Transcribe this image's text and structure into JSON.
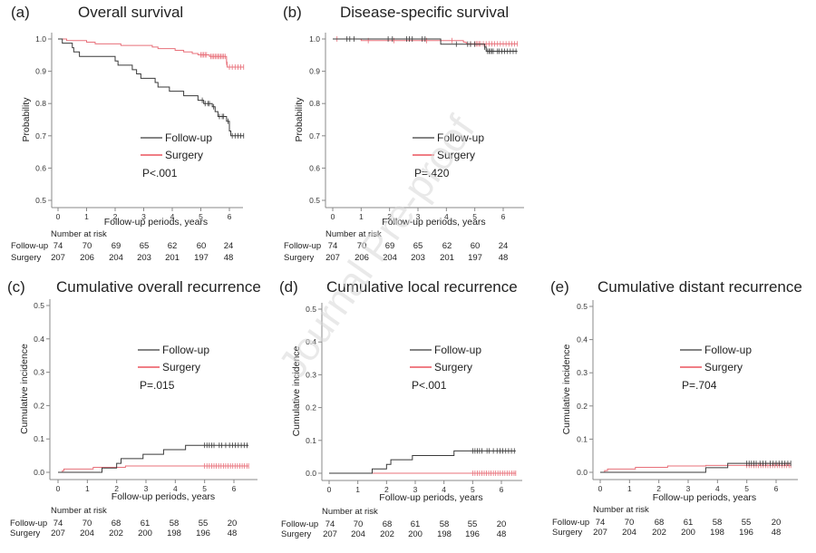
{
  "watermark": "Journal Pre-proof",
  "colors": {
    "follow_up": "#3a3a3a",
    "surgery": "#e8707a",
    "legend_surgery": "#e8323c"
  },
  "chart_data": [
    {
      "id": "a",
      "type": "line",
      "letter": "(a)",
      "title": "Overall survival",
      "xlabel": "Follow-up periods, years",
      "ylabel": "Probability",
      "xlim": [
        0,
        6.5
      ],
      "ylim": [
        0.5,
        1.0
      ],
      "xticks": [
        0,
        1,
        2,
        3,
        4,
        5,
        6
      ],
      "yticks": [
        "0.5",
        "0.6",
        "0.7",
        "0.8",
        "0.9",
        "1.0"
      ],
      "ytick_values": [
        0.5,
        0.6,
        0.7,
        0.8,
        0.9,
        1.0
      ],
      "legend": [
        "Follow-up",
        "Surgery"
      ],
      "p_value": "P<.001",
      "series": [
        {
          "name": "Follow-up",
          "step": [
            [
              0,
              1.0
            ],
            [
              0.15,
              0.987
            ],
            [
              0.5,
              0.973
            ],
            [
              0.55,
              0.96
            ],
            [
              0.75,
              0.946
            ],
            [
              2.0,
              0.932
            ],
            [
              2.1,
              0.919
            ],
            [
              2.6,
              0.905
            ],
            [
              2.75,
              0.892
            ],
            [
              2.9,
              0.878
            ],
            [
              3.4,
              0.865
            ],
            [
              3.5,
              0.851
            ],
            [
              3.9,
              0.838
            ],
            [
              4.4,
              0.824
            ],
            [
              4.9,
              0.81
            ],
            [
              5.1,
              0.8
            ],
            [
              5.4,
              0.79
            ],
            [
              5.5,
              0.775
            ],
            [
              5.6,
              0.76
            ],
            [
              5.9,
              0.745
            ],
            [
              6.0,
              0.715
            ],
            [
              6.05,
              0.7
            ],
            [
              6.5,
              0.7
            ]
          ],
          "censor": [
            5.05,
            5.15,
            5.25,
            5.3,
            5.45,
            5.65,
            5.75,
            5.8,
            5.95,
            6.1,
            6.2,
            6.3,
            6.4,
            6.5
          ]
        },
        {
          "name": "Surgery",
          "step": [
            [
              0,
              1.0
            ],
            [
              0.3,
              0.995
            ],
            [
              1.0,
              0.99
            ],
            [
              1.3,
              0.985
            ],
            [
              2.2,
              0.98
            ],
            [
              3.3,
              0.975
            ],
            [
              3.5,
              0.97
            ],
            [
              4.1,
              0.965
            ],
            [
              4.4,
              0.96
            ],
            [
              4.7,
              0.955
            ],
            [
              4.9,
              0.951
            ],
            [
              5.3,
              0.946
            ],
            [
              5.9,
              0.928
            ],
            [
              5.92,
              0.913
            ],
            [
              6.5,
              0.913
            ]
          ],
          "censor": [
            5.0,
            5.05,
            5.1,
            5.15,
            5.2,
            5.35,
            5.4,
            5.45,
            5.5,
            5.55,
            5.6,
            5.65,
            5.7,
            5.75,
            5.8,
            5.85,
            5.9,
            6.0,
            6.1,
            6.2,
            6.3,
            6.4,
            6.5
          ]
        }
      ],
      "risk_table": {
        "header": "Number at risk",
        "rows": [
          {
            "label": "Follow-up",
            "values": [
              "74",
              "70",
              "69",
              "65",
              "62",
              "60",
              "24"
            ]
          },
          {
            "label": "Surgery",
            "values": [
              "207",
              "206",
              "204",
              "203",
              "201",
              "197",
              "48"
            ]
          }
        ]
      }
    },
    {
      "id": "b",
      "type": "line",
      "letter": "(b)",
      "title": "Disease-specific survival",
      "xlabel": "Follow-up periods, years",
      "ylabel": "Probability",
      "xlim": [
        0,
        6.5
      ],
      "ylim": [
        0.5,
        1.0
      ],
      "xticks": [
        0,
        1,
        2,
        3,
        4,
        5,
        6
      ],
      "yticks": [
        "0.5",
        "0.6",
        "0.7",
        "0.8",
        "0.9",
        "1.0"
      ],
      "ytick_values": [
        0.5,
        0.6,
        0.7,
        0.8,
        0.9,
        1.0
      ],
      "legend": [
        "Follow-up",
        "Surgery"
      ],
      "p_value": "P=.420",
      "series": [
        {
          "name": "Follow-up",
          "step": [
            [
              0,
              1.0
            ],
            [
              3.8,
              0.984
            ],
            [
              5.35,
              0.975
            ],
            [
              5.4,
              0.962
            ],
            [
              6.5,
              0.962
            ]
          ],
          "censor": [
            0.5,
            0.6,
            0.75,
            1.95,
            2.1,
            2.6,
            2.7,
            2.8,
            3.15,
            3.25,
            4.35,
            4.75,
            4.85,
            5.0,
            5.35,
            5.45,
            5.5,
            5.55,
            5.6,
            5.65,
            5.8,
            5.85,
            5.95,
            6.05,
            6.15,
            6.25,
            6.35,
            6.45
          ]
        },
        {
          "name": "Surgery",
          "step": [
            [
              0,
              1.0
            ],
            [
              1.0,
              0.995
            ],
            [
              4.6,
              0.99
            ],
            [
              4.7,
              0.985
            ],
            [
              6.5,
              0.985
            ]
          ],
          "censor": [
            0.15,
            1.25,
            2.15,
            3.3,
            4.2,
            4.85,
            5.0,
            5.05,
            5.1,
            5.15,
            5.2,
            5.3,
            5.4,
            5.5,
            5.6,
            5.7,
            5.8,
            5.9,
            6.0,
            6.1,
            6.2,
            6.3,
            6.4,
            6.5
          ]
        }
      ],
      "risk_table": {
        "header": "Number at risk",
        "rows": [
          {
            "label": "Follow-up",
            "values": [
              "74",
              "70",
              "69",
              "65",
              "62",
              "60",
              "24"
            ]
          },
          {
            "label": "Surgery",
            "values": [
              "207",
              "206",
              "204",
              "203",
              "201",
              "197",
              "48"
            ]
          }
        ]
      }
    },
    {
      "id": "c",
      "type": "line",
      "letter": "(c)",
      "title": "Cumulative overall recurrence",
      "xlabel": "Follow-up periods, years",
      "ylabel": "Cumulative incidence",
      "xlim": [
        0,
        6.5
      ],
      "ylim": [
        0.0,
        0.5
      ],
      "xticks": [
        0,
        1,
        2,
        3,
        4,
        5,
        6
      ],
      "yticks": [
        "0.0",
        "0.1",
        "0.2",
        "0.3",
        "0.4",
        "0.5"
      ],
      "ytick_values": [
        0.0,
        0.1,
        0.2,
        0.3,
        0.4,
        0.5
      ],
      "legend": [
        "Follow-up",
        "Surgery"
      ],
      "p_value": "P=.015",
      "series": [
        {
          "name": "Follow-up",
          "step": [
            [
              0,
              0.0
            ],
            [
              1.5,
              0.013
            ],
            [
              2.0,
              0.027
            ],
            [
              2.15,
              0.041
            ],
            [
              2.9,
              0.054
            ],
            [
              3.6,
              0.068
            ],
            [
              4.35,
              0.081
            ],
            [
              6.5,
              0.081
            ]
          ],
          "censor": [
            5.0,
            5.08,
            5.16,
            5.24,
            5.32,
            5.5,
            5.58,
            5.72,
            5.85,
            5.95,
            6.05,
            6.15,
            6.25,
            6.35,
            6.45
          ]
        },
        {
          "name": "Surgery",
          "step": [
            [
              0,
              0.0
            ],
            [
              0.15,
              0.005
            ],
            [
              0.2,
              0.01
            ],
            [
              1.2,
              0.015
            ],
            [
              2.3,
              0.019
            ],
            [
              6.5,
              0.019
            ]
          ],
          "censor": [
            5.0,
            5.08,
            5.16,
            5.24,
            5.32,
            5.4,
            5.48,
            5.56,
            5.64,
            5.72,
            5.8,
            5.88,
            5.96,
            6.04,
            6.12,
            6.2,
            6.28,
            6.36,
            6.44,
            6.5
          ]
        }
      ],
      "risk_table": {
        "header": "Number at risk",
        "rows": [
          {
            "label": "Follow-up",
            "values": [
              "74",
              "70",
              "68",
              "61",
              "58",
              "55",
              "20"
            ]
          },
          {
            "label": "Surgery",
            "values": [
              "207",
              "204",
              "202",
              "200",
              "198",
              "196",
              "48"
            ]
          }
        ]
      }
    },
    {
      "id": "d",
      "type": "line",
      "letter": "(d)",
      "title": "Cumulative local recurrence",
      "xlabel": "Follow-up periods, years",
      "ylabel": "Cumulative incidence",
      "xlim": [
        0,
        6.5
      ],
      "ylim": [
        0.0,
        0.5
      ],
      "xticks": [
        0,
        1,
        2,
        3,
        4,
        5,
        6
      ],
      "yticks": [
        "0.0",
        "0.1",
        "0.2",
        "0.3",
        "0.4",
        "0.5"
      ],
      "ytick_values": [
        0.0,
        0.1,
        0.2,
        0.3,
        0.4,
        0.5
      ],
      "legend": [
        "Follow-up",
        "Surgery"
      ],
      "p_value": "P<.001",
      "series": [
        {
          "name": "Follow-up",
          "step": [
            [
              0,
              0.0
            ],
            [
              1.5,
              0.013
            ],
            [
              2.0,
              0.027
            ],
            [
              2.15,
              0.041
            ],
            [
              2.9,
              0.054
            ],
            [
              4.35,
              0.068
            ],
            [
              6.5,
              0.068
            ]
          ],
          "censor": [
            5.0,
            5.08,
            5.16,
            5.24,
            5.32,
            5.5,
            5.58,
            5.72,
            5.85,
            5.95,
            6.05,
            6.15,
            6.25,
            6.35,
            6.45
          ]
        },
        {
          "name": "Surgery",
          "step": [
            [
              0,
              0.0
            ],
            [
              6.5,
              0.0
            ]
          ],
          "censor": [
            5.0,
            5.08,
            5.16,
            5.24,
            5.32,
            5.4,
            5.48,
            5.56,
            5.64,
            5.72,
            5.8,
            5.88,
            5.96,
            6.04,
            6.12,
            6.2,
            6.28,
            6.36,
            6.44,
            6.5
          ]
        }
      ],
      "risk_table": {
        "header": "Number at risk",
        "rows": [
          {
            "label": "Follow-up",
            "values": [
              "74",
              "70",
              "68",
              "61",
              "58",
              "55",
              "20"
            ]
          },
          {
            "label": "Surgery",
            "values": [
              "207",
              "204",
              "202",
              "200",
              "198",
              "196",
              "48"
            ]
          }
        ]
      }
    },
    {
      "id": "e",
      "type": "line",
      "letter": "(e)",
      "title": "Cumulative distant recurrence",
      "xlabel": "Follow-up periods, years",
      "ylabel": "Cumulative incidence",
      "xlim": [
        0,
        6.5
      ],
      "ylim": [
        0.0,
        0.5
      ],
      "xticks": [
        0,
        1,
        2,
        3,
        4,
        5,
        6
      ],
      "yticks": [
        "0.0",
        "0.1",
        "0.2",
        "0.3",
        "0.4",
        "0.5"
      ],
      "ytick_values": [
        0.0,
        0.1,
        0.2,
        0.3,
        0.4,
        0.5
      ],
      "legend": [
        "Follow-up",
        "Surgery"
      ],
      "p_value": "P=.704",
      "series": [
        {
          "name": "Follow-up",
          "step": [
            [
              0,
              0.0
            ],
            [
              3.6,
              0.014
            ],
            [
              4.35,
              0.027
            ],
            [
              6.5,
              0.027
            ]
          ],
          "censor": [
            5.0,
            5.08,
            5.16,
            5.24,
            5.32,
            5.45,
            5.55,
            5.65,
            5.8,
            5.9,
            6.0,
            6.1,
            6.2,
            6.3,
            6.4,
            6.5
          ]
        },
        {
          "name": "Surgery",
          "step": [
            [
              0,
              0.0
            ],
            [
              0.15,
              0.005
            ],
            [
              0.25,
              0.01
            ],
            [
              1.2,
              0.015
            ],
            [
              2.3,
              0.019
            ],
            [
              3.6,
              0.021
            ],
            [
              6.5,
              0.021
            ]
          ],
          "censor": [
            5.0,
            5.08,
            5.16,
            5.24,
            5.32,
            5.4,
            5.48,
            5.56,
            5.64,
            5.72,
            5.8,
            5.88,
            5.96,
            6.04,
            6.12,
            6.2,
            6.28,
            6.36,
            6.44,
            6.5
          ]
        }
      ],
      "risk_table": {
        "header": "Number at risk",
        "rows": [
          {
            "label": "Follow-up",
            "values": [
              "74",
              "70",
              "68",
              "61",
              "58",
              "55",
              "20"
            ]
          },
          {
            "label": "Surgery",
            "values": [
              "207",
              "204",
              "202",
              "200",
              "198",
              "196",
              "48"
            ]
          }
        ]
      }
    }
  ]
}
